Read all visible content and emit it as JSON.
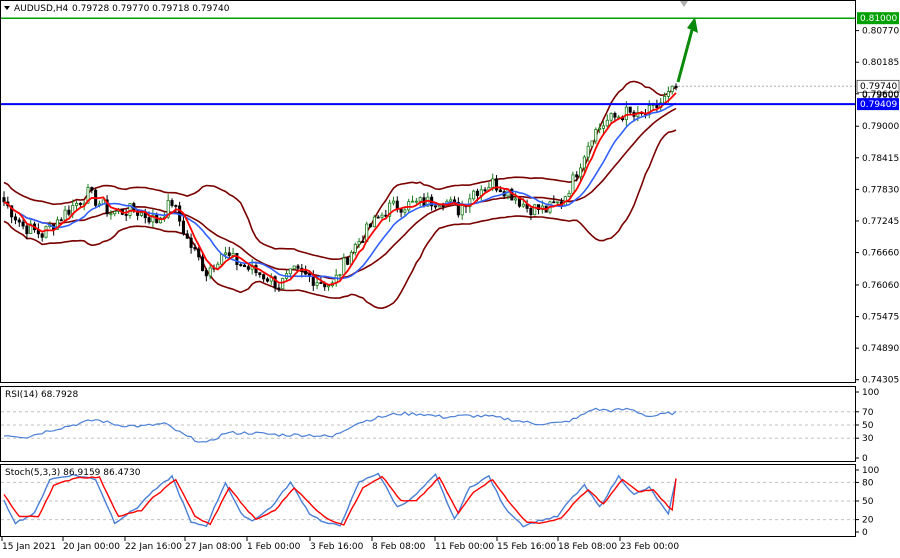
{
  "header": {
    "symbol": "AUDUSD,H4",
    "ohlc": "0.79728 0.79770 0.79718 0.79740"
  },
  "colors": {
    "bull": "#1a7a1a",
    "bear": "#000000",
    "ma_fast": "#ff0000",
    "ma_slow": "#3060ff",
    "bollinger": "#7a0000",
    "support_line": "#0000ff",
    "target_line": "#00a000",
    "rsi_line": "#4a7fd6",
    "stoch_main": "#4a7fd6",
    "stoch_signal": "#ff0000",
    "arrow": "#0a8a0a"
  },
  "price_labels": {
    "target": "0.81000",
    "current": "0.79740",
    "current_secondary": "0.79600",
    "support": "0.79409"
  },
  "chart_data": [
    {
      "type": "candlestick",
      "ylim": [
        0.743,
        0.813
      ],
      "y_ticks": [
        "0.80770",
        "0.80185",
        "0.79600",
        "0.79000",
        "0.78415",
        "0.77830",
        "0.77245",
        "0.76660",
        "0.76060",
        "0.75475",
        "0.74890",
        "0.74305"
      ],
      "x_labels": [
        "15 Jan 2021",
        "20 Jan 00:00",
        "22 Jan 16:00",
        "27 Jan 08:00",
        "1 Feb 00:00",
        "3 Feb 16:00",
        "8 Feb 08:00",
        "11 Feb 00:00",
        "15 Feb 16:00",
        "18 Feb 08:00",
        "23 Feb 00:00"
      ],
      "anchors": [
        [
          0,
          0.776
        ],
        [
          5,
          0.7715
        ],
        [
          10,
          0.77
        ],
        [
          16,
          0.774
        ],
        [
          22,
          0.7775
        ],
        [
          28,
          0.774
        ],
        [
          34,
          0.7745
        ],
        [
          40,
          0.7725
        ],
        [
          44,
          0.776
        ],
        [
          48,
          0.769
        ],
        [
          53,
          0.763
        ],
        [
          57,
          0.7665
        ],
        [
          63,
          0.764
        ],
        [
          69,
          0.762
        ],
        [
          72,
          0.7605
        ],
        [
          76,
          0.763
        ],
        [
          82,
          0.7615
        ],
        [
          86,
          0.7605
        ],
        [
          91,
          0.767
        ],
        [
          96,
          0.7715
        ],
        [
          101,
          0.775
        ],
        [
          106,
          0.7755
        ],
        [
          111,
          0.776
        ],
        [
          115,
          0.7765
        ],
        [
          119,
          0.7745
        ],
        [
          123,
          0.778
        ],
        [
          128,
          0.7795
        ],
        [
          132,
          0.778
        ],
        [
          137,
          0.775
        ],
        [
          142,
          0.7745
        ],
        [
          146,
          0.776
        ],
        [
          149,
          0.78
        ],
        [
          154,
          0.7885
        ],
        [
          158,
          0.791
        ],
        [
          163,
          0.7925
        ],
        [
          166,
          0.7915
        ],
        [
          170,
          0.793
        ],
        [
          173,
          0.795
        ],
        [
          176,
          0.797
        ]
      ],
      "candle_count": 177,
      "indicators": [
        "Bollinger Bands",
        "Moving Average (fast)",
        "Moving Average (slow)"
      ]
    },
    {
      "type": "line",
      "title": "RSI(14) 68.7928",
      "ylim": [
        0,
        100
      ],
      "y_ticks": [
        "100",
        "70",
        "50",
        "30",
        "0"
      ],
      "anchors": [
        [
          0,
          35
        ],
        [
          6,
          32
        ],
        [
          12,
          42
        ],
        [
          18,
          50
        ],
        [
          24,
          58
        ],
        [
          30,
          50
        ],
        [
          36,
          48
        ],
        [
          42,
          52
        ],
        [
          48,
          32
        ],
        [
          53,
          22
        ],
        [
          58,
          38
        ],
        [
          65,
          38
        ],
        [
          72,
          35
        ],
        [
          80,
          35
        ],
        [
          86,
          32
        ],
        [
          92,
          52
        ],
        [
          97,
          60
        ],
        [
          103,
          67
        ],
        [
          109,
          67
        ],
        [
          115,
          62
        ],
        [
          121,
          64
        ],
        [
          127,
          63
        ],
        [
          133,
          58
        ],
        [
          139,
          52
        ],
        [
          146,
          53
        ],
        [
          150,
          60
        ],
        [
          154,
          74
        ],
        [
          159,
          72
        ],
        [
          164,
          74
        ],
        [
          169,
          63
        ],
        [
          176,
          69
        ]
      ]
    },
    {
      "type": "line",
      "title": "Stoch(5,3,3) 86.9159 86.4730",
      "ylim": [
        0,
        100
      ],
      "y_ticks": [
        "100",
        "80",
        "50",
        "20",
        "0"
      ],
      "series": [
        {
          "anchors": [
            [
              0,
              50
            ],
            [
              3,
              15
            ],
            [
              8,
              30
            ],
            [
              12,
              85
            ],
            [
              18,
              92
            ],
            [
              24,
              85
            ],
            [
              29,
              15
            ],
            [
              35,
              40
            ],
            [
              38,
              60
            ],
            [
              44,
              90
            ],
            [
              49,
              15
            ],
            [
              53,
              10
            ],
            [
              58,
              80
            ],
            [
              62,
              30
            ],
            [
              65,
              18
            ],
            [
              70,
              40
            ],
            [
              75,
              80
            ],
            [
              80,
              30
            ],
            [
              84,
              15
            ],
            [
              88,
              10
            ],
            [
              93,
              80
            ],
            [
              98,
              95
            ],
            [
              103,
              40
            ],
            [
              107,
              55
            ],
            [
              113,
              92
            ],
            [
              118,
              20
            ],
            [
              122,
              72
            ],
            [
              127,
              90
            ],
            [
              131,
              40
            ],
            [
              136,
              10
            ],
            [
              140,
              18
            ],
            [
              145,
              25
            ],
            [
              148,
              50
            ],
            [
              152,
              75
            ],
            [
              156,
              40
            ],
            [
              161,
              90
            ],
            [
              165,
              60
            ],
            [
              169,
              72
            ],
            [
              174,
              28
            ],
            [
              176,
              86
            ]
          ]
        },
        {
          "anchors": [
            [
              0,
              60
            ],
            [
              4,
              25
            ],
            [
              9,
              25
            ],
            [
              13,
              75
            ],
            [
              19,
              88
            ],
            [
              25,
              88
            ],
            [
              30,
              25
            ],
            [
              36,
              35
            ],
            [
              39,
              55
            ],
            [
              45,
              85
            ],
            [
              50,
              25
            ],
            [
              54,
              12
            ],
            [
              59,
              72
            ],
            [
              63,
              40
            ],
            [
              66,
              20
            ],
            [
              71,
              35
            ],
            [
              76,
              72
            ],
            [
              81,
              40
            ],
            [
              85,
              20
            ],
            [
              89,
              12
            ],
            [
              94,
              72
            ],
            [
              99,
              90
            ],
            [
              104,
              50
            ],
            [
              108,
              50
            ],
            [
              114,
              88
            ],
            [
              119,
              30
            ],
            [
              123,
              65
            ],
            [
              128,
              85
            ],
            [
              132,
              50
            ],
            [
              137,
              15
            ],
            [
              141,
              15
            ],
            [
              146,
              22
            ],
            [
              149,
              45
            ],
            [
              153,
              68
            ],
            [
              157,
              45
            ],
            [
              162,
              85
            ],
            [
              166,
              65
            ],
            [
              170,
              68
            ],
            [
              175,
              35
            ],
            [
              176,
              86
            ]
          ]
        }
      ]
    }
  ]
}
